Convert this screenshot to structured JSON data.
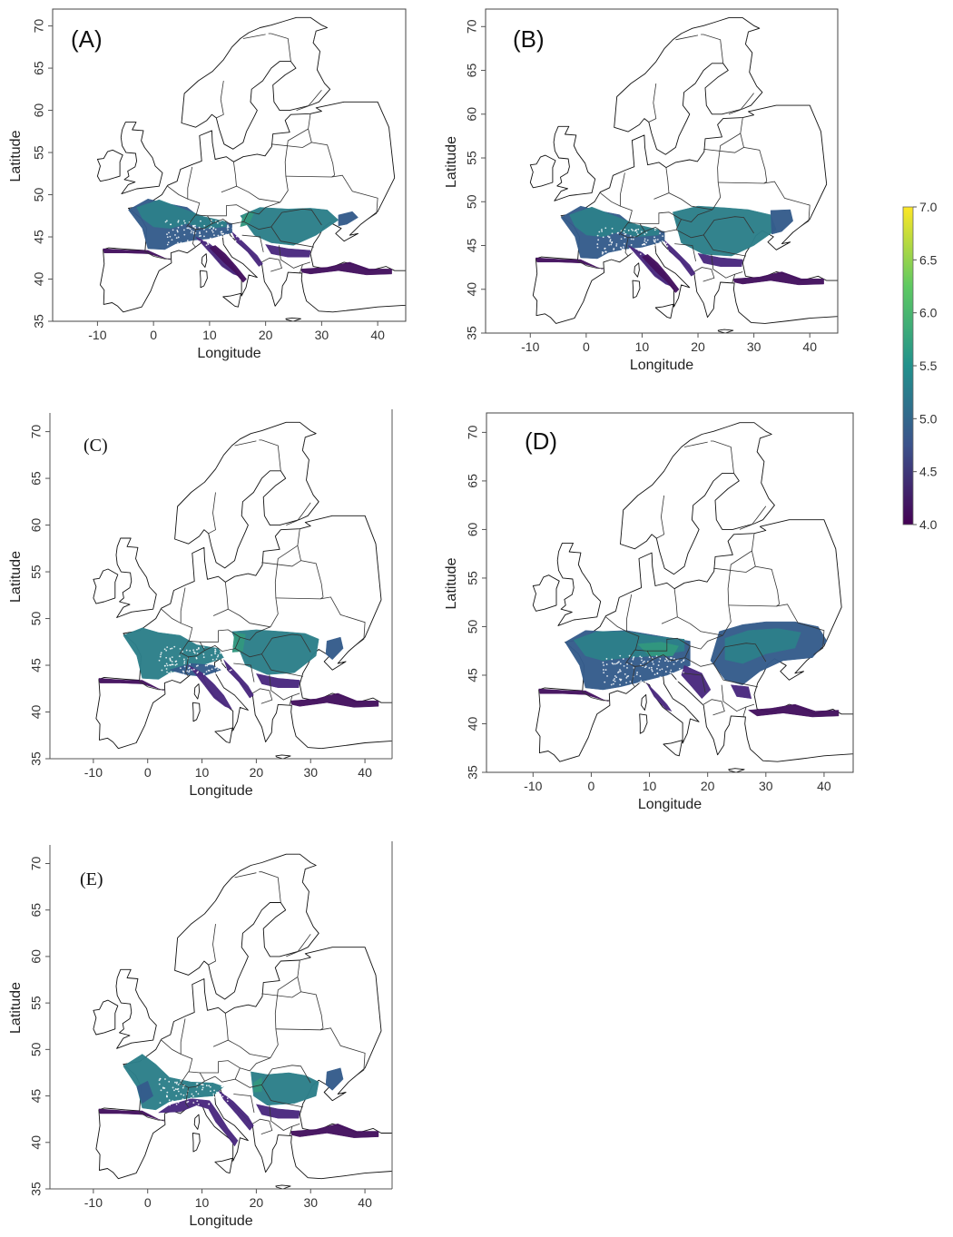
{
  "panels": [
    {
      "label": "(A)",
      "label_style": "sans",
      "xlabel": "Longitude",
      "ylabel": "Latitude"
    },
    {
      "label": "(B)",
      "label_style": "sans",
      "xlabel": "Longitude",
      "ylabel": "Latitude"
    },
    {
      "label": "(C)",
      "label_style": "serif",
      "xlabel": "Longitude",
      "ylabel": "Latitude"
    },
    {
      "label": "(D)",
      "label_style": "sans",
      "xlabel": "Longitude",
      "ylabel": "Latitude"
    },
    {
      "label": "(E)",
      "label_style": "serif",
      "xlabel": "Longitude",
      "ylabel": "Latitude"
    }
  ],
  "x_ticks": [
    "-10",
    "0",
    "10",
    "20",
    "30",
    "40"
  ],
  "y_ticks": [
    "35",
    "40",
    "45",
    "50",
    "55",
    "60",
    "65",
    "70"
  ],
  "xlim": [
    -18,
    45
  ],
  "ylim": [
    35,
    72
  ],
  "colorbar": {
    "ticks": [
      "7.0",
      "6.5",
      "6.0",
      "5.5",
      "5.0",
      "4.5",
      "4.0"
    ],
    "range": [
      4.0,
      7.0
    ],
    "colormap": "viridis",
    "colors": [
      "#440154",
      "#3b528b",
      "#21918c",
      "#5ec962",
      "#fde725"
    ]
  },
  "colors": {
    "deep_purple": "#45125f",
    "purple": "#4b2a7f",
    "blue": "#355c8c",
    "teal": "#2d7f8a",
    "green_teal": "#32977f"
  }
}
